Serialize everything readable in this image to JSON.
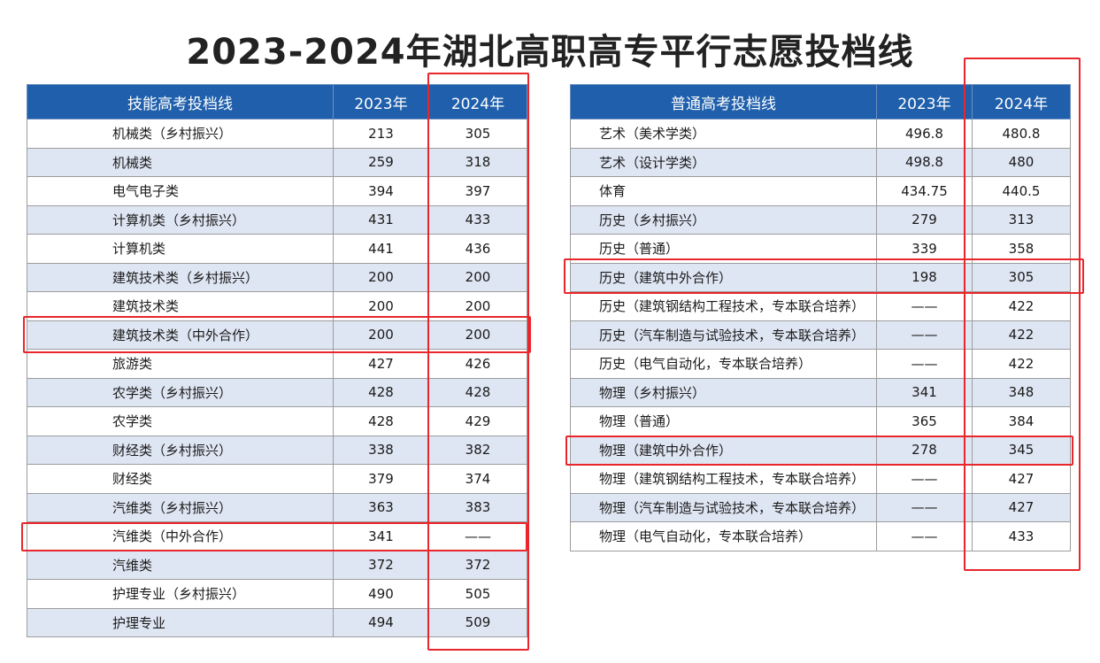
{
  "title": "2023-2024年湖北高职高专平行志愿投档线",
  "left_table": {
    "headers": [
      "技能高考投档线",
      "2023年",
      "2024年"
    ],
    "rows": [
      [
        "机械类（乡村振兴）",
        "213",
        "305"
      ],
      [
        "机械类",
        "259",
        "318"
      ],
      [
        "电气电子类",
        "394",
        "397"
      ],
      [
        "计算机类（乡村振兴）",
        "431",
        "433"
      ],
      [
        "计算机类",
        "441",
        "436"
      ],
      [
        "建筑技术类（乡村振兴）",
        "200",
        "200"
      ],
      [
        "建筑技术类",
        "200",
        "200"
      ],
      [
        "建筑技术类（中外合作）",
        "200",
        "200"
      ],
      [
        "旅游类",
        "427",
        "426"
      ],
      [
        "农学类（乡村振兴）",
        "428",
        "428"
      ],
      [
        "农学类",
        "428",
        "429"
      ],
      [
        "财经类（乡村振兴）",
        "338",
        "382"
      ],
      [
        "财经类",
        "379",
        "374"
      ],
      [
        "汽维类（乡村振兴）",
        "363",
        "383"
      ],
      [
        "汽维类（中外合作）",
        "341",
        "——"
      ],
      [
        "汽维类",
        "372",
        "372"
      ],
      [
        "护理专业（乡村振兴）",
        "490",
        "505"
      ],
      [
        "护理专业",
        "494",
        "509"
      ]
    ]
  },
  "right_table": {
    "headers": [
      "普通高考投档线",
      "2023年",
      "2024年"
    ],
    "rows": [
      [
        "艺术（美术学类）",
        "496.8",
        "480.8"
      ],
      [
        "艺术（设计学类）",
        "498.8",
        "480"
      ],
      [
        "体育",
        "434.75",
        "440.5"
      ],
      [
        "历史（乡村振兴）",
        "279",
        "313"
      ],
      [
        "历史（普通）",
        "339",
        "358"
      ],
      [
        "历史（建筑中外合作）",
        "198",
        "305"
      ],
      [
        "历史（建筑钢结构工程技术，专本联合培养）",
        "——",
        "422"
      ],
      [
        "历史（汽车制造与试验技术，专本联合培养）",
        "——",
        "422"
      ],
      [
        "历史（电气自动化，专本联合培养）",
        "——",
        "422"
      ],
      [
        "物理（乡村振兴）",
        "341",
        "348"
      ],
      [
        "物理（普通）",
        "365",
        "384"
      ],
      [
        "物理（建筑中外合作）",
        "278",
        "345"
      ],
      [
        "物理（建筑钢结构工程技术，专本联合培养）",
        "——",
        "427"
      ],
      [
        "物理（汽车制造与试验技术，专本联合培养）",
        "——",
        "427"
      ],
      [
        "物理（电气自动化，专本联合培养）",
        "——",
        "433"
      ]
    ]
  },
  "colors": {
    "header_bg": "#1f5fab",
    "alt_row_bg": "#dfe6f3",
    "highlight": "#e8262c"
  }
}
